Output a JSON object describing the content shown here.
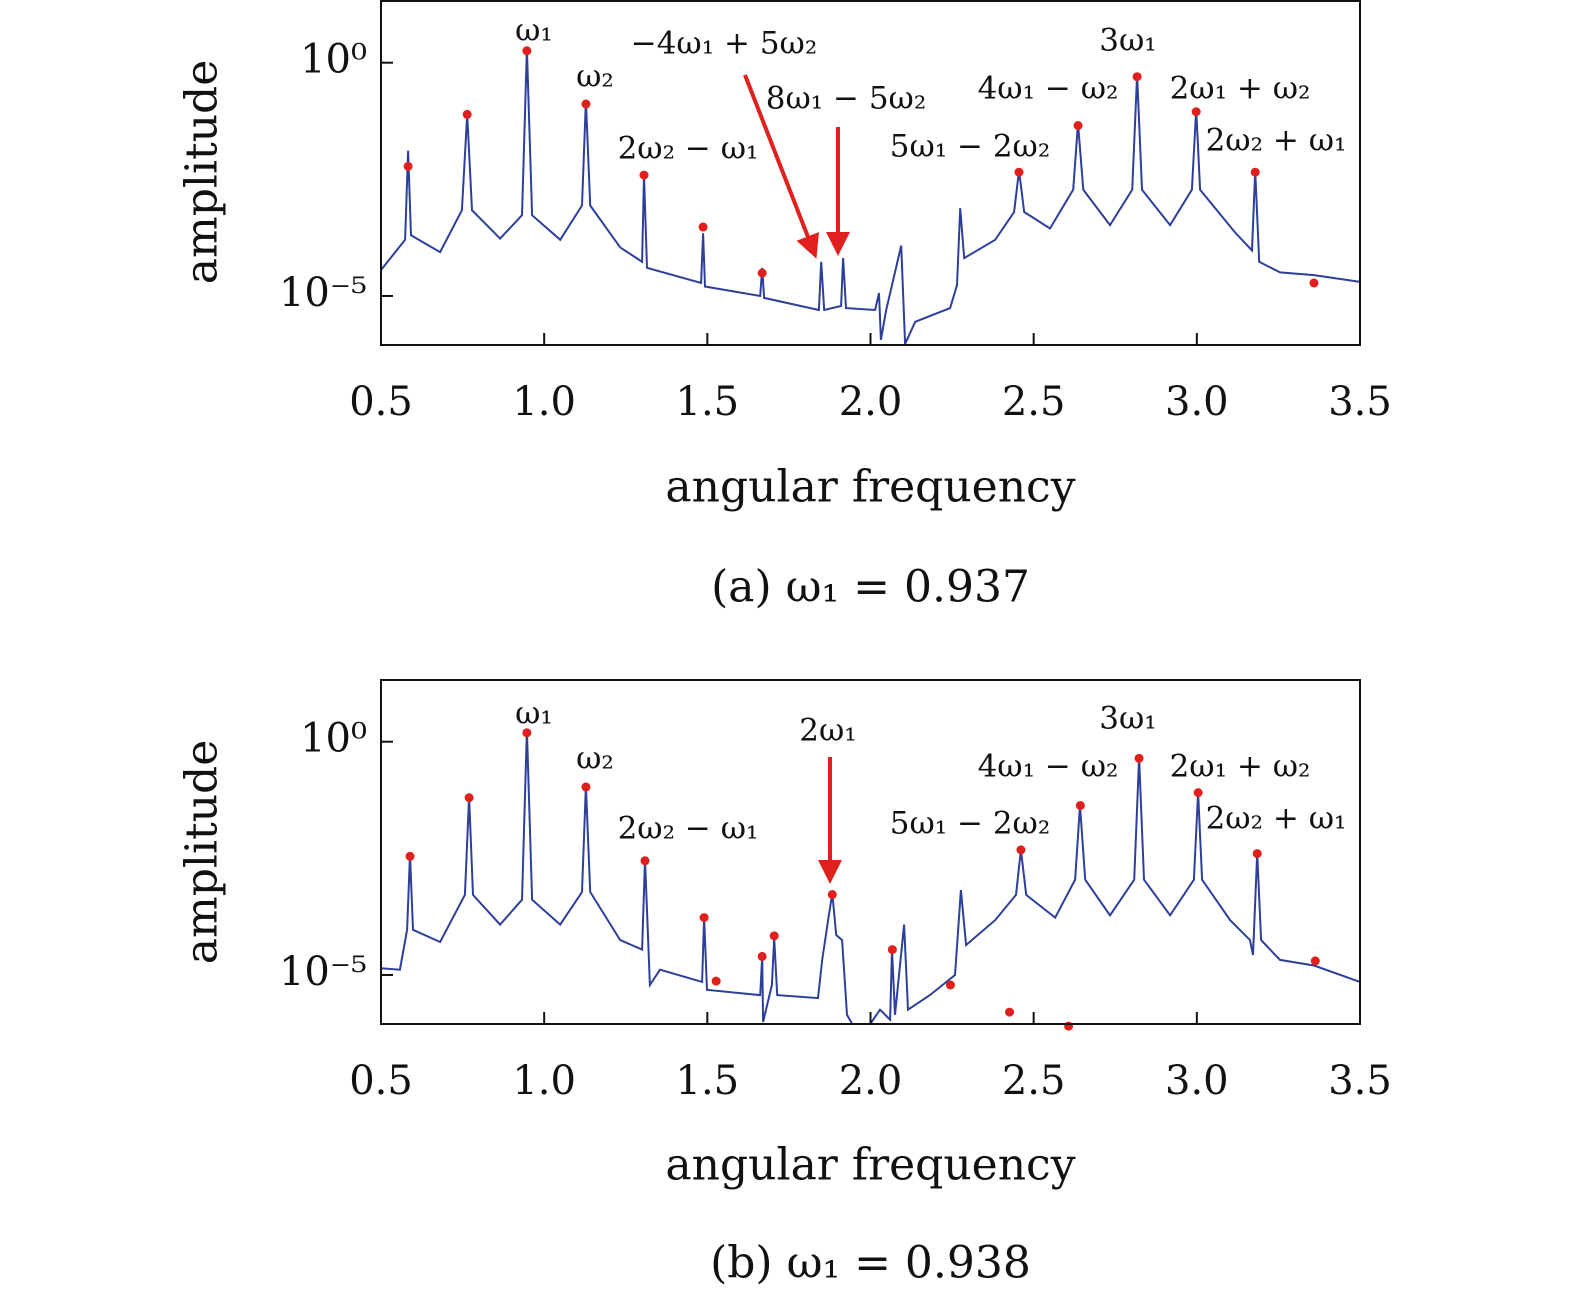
{
  "chart_data": [
    {
      "type": "line",
      "caption": "(a) ω₁ = 0.937",
      "xlabel": "angular frequency",
      "ylabel": "amplitude",
      "log_y": true,
      "xlim": [
        0.5,
        3.5
      ],
      "ylim": [
        8.9e-07,
        21
      ],
      "xticks": [
        0.5,
        {
          "value": 1,
          "label": "1.0"
        },
        1.5,
        {
          "value": 2,
          "label": "2.0"
        },
        2.5,
        {
          "value": 3,
          "label": "3.0"
        },
        3.5
      ],
      "yticks": [
        {
          "value": 1,
          "label": "10⁰"
        },
        {
          "value": 1e-05,
          "label": "10⁻⁵"
        }
      ],
      "series": [
        {
          "color": "#2e3f9a",
          "x": [
            0.5,
            0.574,
            0.583,
            0.592,
            0.681,
            0.748,
            0.764,
            0.779,
            0.865,
            0.932,
            0.947,
            0.963,
            1.049,
            1.116,
            1.128,
            1.141,
            1.233,
            1.3,
            1.306,
            1.315,
            1.481,
            1.487,
            1.493,
            1.662,
            1.668,
            1.674,
            1.842,
            1.849,
            1.858,
            1.91,
            1.916,
            1.925,
            2.014,
            2.026,
            2.032,
            2.048,
            2.094,
            2.106,
            2.137,
            2.244,
            2.265,
            2.275,
            2.287,
            2.382,
            2.44,
            2.455,
            2.471,
            2.55,
            2.621,
            2.636,
            2.652,
            2.734,
            2.802,
            2.817,
            2.832,
            2.918,
            2.985,
            2.998,
            3.01,
            3.117,
            3.169,
            3.179,
            3.191,
            3.255,
            3.359,
            3.5
          ],
          "values": [
            3.6e-05,
            0.00016,
            0.013,
            0.0002,
            8.7e-05,
            0.00069,
            0.078,
            0.00069,
            0.00017,
            0.00054,
            2.0,
            0.00054,
            0.00016,
            0.00087,
            0.155,
            0.00087,
            0.00011,
            5.4e-05,
            0.0039,
            4e-05,
            1.9e-05,
            0.00022,
            1.6e-05,
            1e-05,
            4e-05,
            9.1e-06,
            5e-06,
            5.4e-05,
            5e-06,
            6.1e-06,
            6.5e-05,
            5.5e-06,
            5e-06,
            1.15e-05,
            1.15e-06,
            5e-06,
            0.00012,
            9.4e-07,
            2.8e-06,
            5.5e-06,
            1.7e-05,
            0.00076,
            6.5e-05,
            0.00016,
            0.00063,
            0.0049,
            0.00063,
            0.00028,
            0.0019,
            0.05,
            0.0019,
            0.00033,
            0.0019,
            0.55,
            0.0019,
            0.00033,
            0.0019,
            0.1,
            0.0019,
            0.00023,
            9.5e-05,
            0.0049,
            5.4e-05,
            3.2e-05,
            2.8e-05,
            2e-05
          ]
        },
        {
          "color": "#e0201c",
          "mode": "markers",
          "x": [
            0.583,
            0.764,
            0.947,
            1.128,
            1.306,
            1.487,
            1.668,
            2.455,
            2.636,
            2.817,
            2.998,
            3.179,
            3.359
          ],
          "values": [
            0.006,
            0.078,
            1.8,
            0.13,
            0.0039,
            0.0003,
            3.1e-05,
            0.0045,
            0.045,
            0.5,
            0.089,
            0.0045,
            1.9e-05
          ]
        }
      ],
      "annotations": [
        {
          "text": "ω₁"
        },
        {
          "text": "ω₂"
        },
        {
          "text": "2ω₂ − ω₁"
        },
        {
          "text": "−4ω₁ + 5ω₂"
        },
        {
          "text": "8ω₁ − 5ω₂"
        },
        {
          "text": "5ω₁ − 2ω₂"
        },
        {
          "text": "4ω₁ − ω₂"
        },
        {
          "text": "3ω₁"
        },
        {
          "text": "2ω₁ + ω₂"
        },
        {
          "text": "2ω₂ + ω₁"
        }
      ]
    },
    {
      "type": "line",
      "caption": "(b) ω₁ = 0.938",
      "xlabel": "angular frequency",
      "ylabel": "amplitude",
      "log_y": true,
      "xlim": [
        0.5,
        3.5
      ],
      "ylim": [
        8.9e-07,
        21
      ],
      "xticks": [
        0.5,
        {
          "value": 1,
          "label": "1.0"
        },
        1.5,
        {
          "value": 2,
          "label": "2.0"
        },
        2.5,
        {
          "value": 3,
          "label": "3.0"
        },
        3.5
      ],
      "yticks": [
        {
          "value": 1,
          "label": "10⁰"
        },
        {
          "value": 1e-05,
          "label": "10⁻⁵"
        }
      ],
      "series": [
        {
          "color": "#2e3f9a",
          "x": [
            0.5,
            0.558,
            0.58,
            0.589,
            0.598,
            0.681,
            0.757,
            0.77,
            0.782,
            0.865,
            0.932,
            0.947,
            0.963,
            1.049,
            1.116,
            1.128,
            1.141,
            1.233,
            1.3,
            1.309,
            1.324,
            1.355,
            1.484,
            1.49,
            1.499,
            1.662,
            1.668,
            1.671,
            1.698,
            1.705,
            1.714,
            1.839,
            1.852,
            1.87,
            1.883,
            1.895,
            1.913,
            1.928,
            1.944,
            1.999,
            2.029,
            2.06,
            2.066,
            2.075,
            2.103,
            2.115,
            2.182,
            2.259,
            2.277,
            2.293,
            2.382,
            2.446,
            2.461,
            2.477,
            2.566,
            2.627,
            2.642,
            2.658,
            2.734,
            2.808,
            2.823,
            2.838,
            2.918,
            2.991,
            3.004,
            3.016,
            3.102,
            3.163,
            3.172,
            3.185,
            3.197,
            3.255,
            3.359,
            3.5
          ],
          "values": [
            1.4e-05,
            1.3e-05,
            9.3e-05,
            0.0038,
            9.3e-05,
            5.1e-05,
            0.00052,
            0.066,
            0.00052,
            0.00012,
            0.00041,
            1.8,
            0.00041,
            0.00012,
            0.0006,
            0.115,
            0.0006,
            5.6e-05,
            3.5e-05,
            0.003,
            6.1e-06,
            1.3e-05,
            7.1e-06,
            0.00017,
            4.8e-06,
            3.7e-06,
            2.5e-05,
            9.8e-07,
            6.1e-06,
            6.2e-05,
            3.7e-06,
            3.2e-06,
            2.1e-05,
            0.00015,
            0.00057,
            7.2e-05,
            5.6e-05,
            1.4e-06,
            8.9e-07,
            8.9e-07,
            1.8e-06,
            1.1e-06,
            3.5e-05,
            1.4e-06,
            0.00012,
            1.8e-06,
            3.7e-06,
            1e-05,
            0.00066,
            4.4e-05,
            0.00015,
            0.00052,
            0.0048,
            0.00052,
            0.00017,
            0.0011,
            0.043,
            0.0011,
            0.00019,
            0.0011,
            0.46,
            0.0011,
            0.00019,
            0.0011,
            0.081,
            0.0011,
            0.00015,
            5.6e-05,
            2.7e-05,
            0.0042,
            5.6e-05,
            2.1e-05,
            1.6e-05,
            7.1e-06
          ]
        },
        {
          "color": "#e0201c",
          "mode": "markers",
          "x": [
            0.589,
            0.77,
            0.947,
            1.128,
            1.309,
            1.49,
            1.527,
            1.668,
            1.705,
            1.883,
            2.067,
            2.245,
            2.426,
            2.461,
            2.607,
            2.643,
            2.823,
            3.004,
            3.185,
            3.363
          ],
          "values": [
            0.0035,
            0.063,
            1.55,
            0.107,
            0.0028,
            0.00017,
            7.4e-06,
            2.5e-05,
            6.9e-05,
            0.00053,
            3.5e-05,
            6.1e-06,
            1.6e-06,
            0.0048,
            8e-07,
            0.043,
            0.44,
            0.081,
            0.004,
            2e-05
          ]
        }
      ],
      "annotations": [
        {
          "text": "ω₁"
        },
        {
          "text": "ω₂"
        },
        {
          "text": "2ω₂ − ω₁"
        },
        {
          "text": "2ω₁"
        },
        {
          "text": "5ω₁ − 2ω₂"
        },
        {
          "text": "4ω₁ − ω₂"
        },
        {
          "text": "3ω₁"
        },
        {
          "text": "2ω₁ + ω₂"
        },
        {
          "text": "2ω₂ + ω₁"
        }
      ]
    }
  ]
}
